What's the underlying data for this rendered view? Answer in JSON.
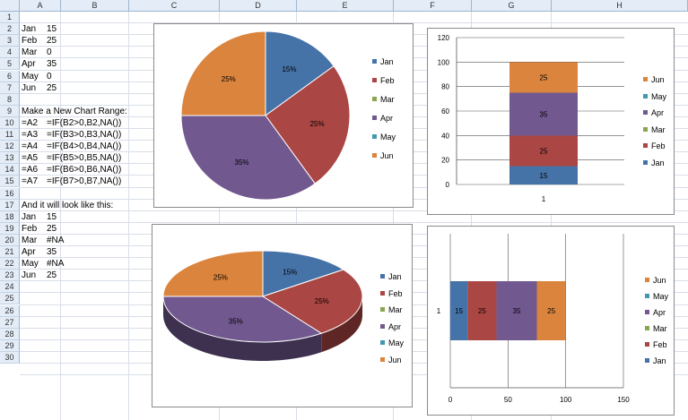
{
  "columns": [
    "A",
    "B",
    "C",
    "D",
    "E",
    "F",
    "G",
    "H"
  ],
  "rows": [
    "1",
    "2",
    "3",
    "4",
    "5",
    "6",
    "7",
    "8",
    "9",
    "10",
    "11",
    "12",
    "13",
    "14",
    "15",
    "16",
    "17",
    "18",
    "19",
    "20",
    "21",
    "22",
    "23",
    "24",
    "25",
    "26",
    "27",
    "28",
    "29",
    "30"
  ],
  "cells": {
    "r2": [
      "Jan",
      "15"
    ],
    "r3": [
      "Feb",
      "25"
    ],
    "r4": [
      "Mar",
      "0"
    ],
    "r5": [
      "Apr",
      "35"
    ],
    "r6": [
      "May",
      "0"
    ],
    "r7": [
      "Jun",
      "25"
    ],
    "r9": "Make a New Chart Range:",
    "r10": [
      "=A2",
      "=IF(B2>0,B2,NA())"
    ],
    "r11": [
      "=A3",
      "=IF(B3>0,B3,NA())"
    ],
    "r12": [
      "=A4",
      "=IF(B4>0,B4,NA())"
    ],
    "r13": [
      "=A5",
      "=IF(B5>0,B5,NA())"
    ],
    "r14": [
      "=A6",
      "=IF(B6>0,B6,NA())"
    ],
    "r15": [
      "=A7",
      "=IF(B7>0,B7,NA())"
    ],
    "r17": "And it will look like this:",
    "r18": [
      "Jan",
      "15"
    ],
    "r19": [
      "Feb",
      "25"
    ],
    "r20": [
      "Mar",
      "#NA"
    ],
    "r21": [
      "Apr",
      "35"
    ],
    "r22": [
      "May",
      "#NA"
    ],
    "r23": [
      "Jun",
      "25"
    ]
  },
  "colors": {
    "Jan": "#4572a7",
    "Feb": "#aa4643",
    "Mar": "#89a54e",
    "Apr": "#71588f",
    "May": "#4198af",
    "Jun": "#db843d"
  },
  "legend_top": [
    "Jan",
    "Feb",
    "Mar",
    "Apr",
    "May",
    "Jun"
  ],
  "legend_reversed": [
    "Jun",
    "May",
    "Apr",
    "Mar",
    "Feb",
    "Jan"
  ],
  "chart_data": [
    {
      "type": "pie",
      "categories": [
        "Jan",
        "Feb",
        "Mar",
        "Apr",
        "May",
        "Jun"
      ],
      "values": [
        15,
        25,
        0,
        35,
        0,
        25
      ],
      "data_labels": [
        "15%",
        "25%",
        "",
        "35%",
        "",
        "25%"
      ],
      "legend_placement": "right"
    },
    {
      "type": "bar",
      "orientation": "vertical",
      "stacked": true,
      "categories": [
        "1"
      ],
      "series": [
        {
          "name": "Jan",
          "values": [
            15
          ]
        },
        {
          "name": "Feb",
          "values": [
            25
          ]
        },
        {
          "name": "Mar",
          "values": [
            0
          ]
        },
        {
          "name": "Apr",
          "values": [
            35
          ]
        },
        {
          "name": "May",
          "values": [
            0
          ]
        },
        {
          "name": "Jun",
          "values": [
            25
          ]
        }
      ],
      "ylim": [
        0,
        120
      ],
      "yticks": [
        "0",
        "20",
        "40",
        "60",
        "80",
        "100",
        "120"
      ],
      "grid": true,
      "legend_placement": "right"
    },
    {
      "type": "pie",
      "style": "3d",
      "categories": [
        "Jan",
        "Feb",
        "Mar",
        "Apr",
        "May",
        "Jun"
      ],
      "values": [
        15,
        25,
        null,
        35,
        null,
        25
      ],
      "data_labels": [
        "15%",
        "25%",
        "",
        "35%",
        "",
        "25%"
      ],
      "legend_placement": "right"
    },
    {
      "type": "bar",
      "orientation": "horizontal",
      "stacked": true,
      "categories": [
        "1"
      ],
      "series": [
        {
          "name": "Jan",
          "values": [
            15
          ]
        },
        {
          "name": "Feb",
          "values": [
            25
          ]
        },
        {
          "name": "Mar",
          "values": [
            0
          ]
        },
        {
          "name": "Apr",
          "values": [
            35
          ]
        },
        {
          "name": "May",
          "values": [
            0
          ]
        },
        {
          "name": "Jun",
          "values": [
            25
          ]
        }
      ],
      "xlim": [
        0,
        150
      ],
      "xticks": [
        "0",
        "50",
        "100",
        "150"
      ],
      "grid": true,
      "legend_placement": "right"
    }
  ]
}
